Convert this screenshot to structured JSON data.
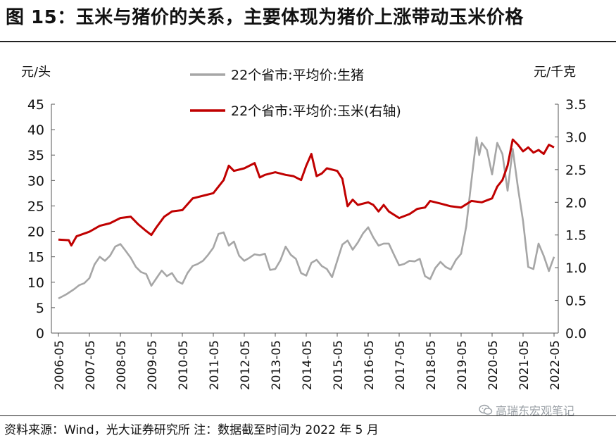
{
  "header": {
    "title": "图 15：玉米与猪价的关系，主要体现为猪价上涨带动玉米价格"
  },
  "footer": {
    "source": "资料来源：Wind，光大证券研究所  注：数据截至时间为 2022 年 5 月"
  },
  "watermark": {
    "text": "高瑞东宏观笔记",
    "icon": "wechat-icon"
  },
  "chart_data": {
    "type": "line",
    "title": "",
    "xlabel": "",
    "y_left": {
      "label": "元/头",
      "range": [
        0,
        45
      ],
      "ticks": [
        "0",
        "5",
        "10",
        "15",
        "20",
        "25",
        "30",
        "35",
        "40",
        "45"
      ]
    },
    "y_right": {
      "label": "元/千克",
      "range": [
        0,
        3.5
      ],
      "ticks": [
        "0.0",
        "0.5",
        "1.0",
        "1.5",
        "2.0",
        "2.5",
        "3.0",
        "3.5"
      ]
    },
    "x_range": [
      "2006-05",
      "2022-05"
    ],
    "x_ticks": [
      "2006-05",
      "2007-05",
      "2008-05",
      "2009-05",
      "2010-05",
      "2011-05",
      "2012-05",
      "2013-05",
      "2014-05",
      "2015-05",
      "2016-05",
      "2017-05",
      "2018-05",
      "2019-05",
      "2020-05",
      "2021-05",
      "2022-05"
    ],
    "legend_position": "top-center",
    "series": [
      {
        "name": "22个省市:平均价:生猪",
        "axis": "left",
        "color": "#a6a6a6",
        "points": [
          [
            "2006-05",
            6.8
          ],
          [
            "2006-08",
            7.6
          ],
          [
            "2006-11",
            8.6
          ],
          [
            "2007-01",
            9.4
          ],
          [
            "2007-03",
            9.8
          ],
          [
            "2007-05",
            10.8
          ],
          [
            "2007-07",
            13.5
          ],
          [
            "2007-09",
            15.0
          ],
          [
            "2007-11",
            14.2
          ],
          [
            "2008-01",
            15.2
          ],
          [
            "2008-03",
            17.0
          ],
          [
            "2008-05",
            17.5
          ],
          [
            "2008-07",
            16.2
          ],
          [
            "2008-09",
            14.8
          ],
          [
            "2008-11",
            13.0
          ],
          [
            "2009-01",
            12.0
          ],
          [
            "2009-03",
            11.6
          ],
          [
            "2009-05",
            9.3
          ],
          [
            "2009-07",
            10.8
          ],
          [
            "2009-09",
            12.3
          ],
          [
            "2009-11",
            11.2
          ],
          [
            "2010-01",
            11.8
          ],
          [
            "2010-03",
            10.2
          ],
          [
            "2010-05",
            9.7
          ],
          [
            "2010-07",
            11.8
          ],
          [
            "2010-09",
            13.2
          ],
          [
            "2010-11",
            13.6
          ],
          [
            "2011-01",
            14.2
          ],
          [
            "2011-03",
            15.4
          ],
          [
            "2011-05",
            16.8
          ],
          [
            "2011-07",
            19.5
          ],
          [
            "2011-09",
            19.8
          ],
          [
            "2011-11",
            17.2
          ],
          [
            "2012-01",
            18.0
          ],
          [
            "2012-03",
            15.2
          ],
          [
            "2012-05",
            14.2
          ],
          [
            "2012-07",
            14.8
          ],
          [
            "2012-09",
            15.5
          ],
          [
            "2012-11",
            15.3
          ],
          [
            "2013-01",
            15.6
          ],
          [
            "2013-03",
            12.4
          ],
          [
            "2013-05",
            12.6
          ],
          [
            "2013-07",
            14.3
          ],
          [
            "2013-09",
            17.0
          ],
          [
            "2013-11",
            15.4
          ],
          [
            "2014-01",
            14.6
          ],
          [
            "2014-03",
            11.8
          ],
          [
            "2014-05",
            11.3
          ],
          [
            "2014-07",
            13.8
          ],
          [
            "2014-09",
            14.4
          ],
          [
            "2014-11",
            13.2
          ],
          [
            "2015-01",
            12.6
          ],
          [
            "2015-03",
            11.0
          ],
          [
            "2015-05",
            14.2
          ],
          [
            "2015-07",
            17.4
          ],
          [
            "2015-09",
            18.2
          ],
          [
            "2015-11",
            16.4
          ],
          [
            "2016-01",
            17.8
          ],
          [
            "2016-03",
            19.6
          ],
          [
            "2016-05",
            20.8
          ],
          [
            "2016-07",
            18.8
          ],
          [
            "2016-09",
            17.2
          ],
          [
            "2016-11",
            17.6
          ],
          [
            "2017-01",
            17.6
          ],
          [
            "2017-03",
            15.4
          ],
          [
            "2017-05",
            13.3
          ],
          [
            "2017-07",
            13.6
          ],
          [
            "2017-09",
            14.2
          ],
          [
            "2017-11",
            14.1
          ],
          [
            "2018-01",
            14.6
          ],
          [
            "2018-03",
            11.2
          ],
          [
            "2018-05",
            10.6
          ],
          [
            "2018-07",
            12.8
          ],
          [
            "2018-09",
            14.0
          ],
          [
            "2018-11",
            13.0
          ],
          [
            "2019-01",
            12.5
          ],
          [
            "2019-03",
            14.4
          ],
          [
            "2019-05",
            15.6
          ],
          [
            "2019-07",
            21.0
          ],
          [
            "2019-09",
            30.0
          ],
          [
            "2019-11",
            38.5
          ],
          [
            "2019-12",
            35.0
          ],
          [
            "2020-01",
            37.4
          ],
          [
            "2020-03",
            36.0
          ],
          [
            "2020-05",
            31.2
          ],
          [
            "2020-07",
            37.4
          ],
          [
            "2020-09",
            35.2
          ],
          [
            "2020-11",
            28.0
          ],
          [
            "2021-01",
            36.2
          ],
          [
            "2021-03",
            28.6
          ],
          [
            "2021-05",
            22.0
          ],
          [
            "2021-07",
            13.0
          ],
          [
            "2021-09",
            12.6
          ],
          [
            "2021-11",
            17.6
          ],
          [
            "2022-01",
            15.2
          ],
          [
            "2022-03",
            12.2
          ],
          [
            "2022-05",
            15.0
          ]
        ]
      },
      {
        "name": "22个省市:平均价:玉米(右轴)",
        "axis": "right",
        "color": "#c00000",
        "points": [
          [
            "2006-05",
            1.43
          ],
          [
            "2006-09",
            1.42
          ],
          [
            "2006-10",
            1.34
          ],
          [
            "2006-12",
            1.48
          ],
          [
            "2007-05",
            1.55
          ],
          [
            "2007-09",
            1.64
          ],
          [
            "2008-01",
            1.68
          ],
          [
            "2008-05",
            1.76
          ],
          [
            "2008-09",
            1.78
          ],
          [
            "2008-12",
            1.66
          ],
          [
            "2009-03",
            1.56
          ],
          [
            "2009-05",
            1.5
          ],
          [
            "2009-07",
            1.62
          ],
          [
            "2009-10",
            1.78
          ],
          [
            "2010-01",
            1.86
          ],
          [
            "2010-05",
            1.88
          ],
          [
            "2010-09",
            2.06
          ],
          [
            "2011-01",
            2.1
          ],
          [
            "2011-05",
            2.14
          ],
          [
            "2011-09",
            2.34
          ],
          [
            "2011-11",
            2.56
          ],
          [
            "2012-01",
            2.48
          ],
          [
            "2012-05",
            2.52
          ],
          [
            "2012-09",
            2.6
          ],
          [
            "2012-11",
            2.38
          ],
          [
            "2013-01",
            2.42
          ],
          [
            "2013-05",
            2.46
          ],
          [
            "2013-09",
            2.42
          ],
          [
            "2013-12",
            2.4
          ],
          [
            "2014-03",
            2.34
          ],
          [
            "2014-05",
            2.56
          ],
          [
            "2014-07",
            2.74
          ],
          [
            "2014-09",
            2.4
          ],
          [
            "2014-11",
            2.44
          ],
          [
            "2015-01",
            2.52
          ],
          [
            "2015-05",
            2.48
          ],
          [
            "2015-07",
            2.36
          ],
          [
            "2015-09",
            1.94
          ],
          [
            "2015-11",
            2.04
          ],
          [
            "2016-01",
            1.96
          ],
          [
            "2016-05",
            2.0
          ],
          [
            "2016-07",
            1.96
          ],
          [
            "2016-09",
            1.86
          ],
          [
            "2016-11",
            1.96
          ],
          [
            "2017-01",
            1.86
          ],
          [
            "2017-05",
            1.76
          ],
          [
            "2017-09",
            1.82
          ],
          [
            "2017-12",
            1.9
          ],
          [
            "2018-03",
            1.92
          ],
          [
            "2018-05",
            2.02
          ],
          [
            "2018-09",
            1.98
          ],
          [
            "2019-01",
            1.94
          ],
          [
            "2019-05",
            1.92
          ],
          [
            "2019-09",
            2.02
          ],
          [
            "2020-01",
            2.0
          ],
          [
            "2020-05",
            2.06
          ],
          [
            "2020-07",
            2.24
          ],
          [
            "2020-09",
            2.34
          ],
          [
            "2020-11",
            2.56
          ],
          [
            "2021-01",
            2.96
          ],
          [
            "2021-03",
            2.88
          ],
          [
            "2021-05",
            2.78
          ],
          [
            "2021-07",
            2.84
          ],
          [
            "2021-09",
            2.76
          ],
          [
            "2021-11",
            2.8
          ],
          [
            "2022-01",
            2.74
          ],
          [
            "2022-03",
            2.88
          ],
          [
            "2022-05",
            2.84
          ]
        ]
      }
    ]
  }
}
